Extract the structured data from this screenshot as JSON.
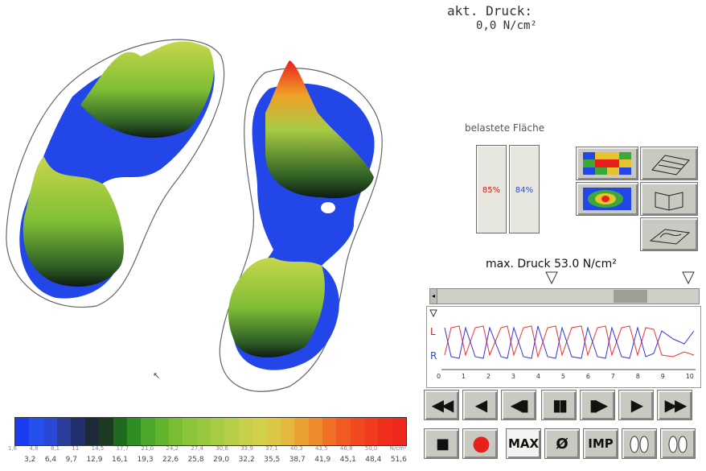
{
  "current_pressure": {
    "label": "akt. Druck:",
    "value": "0,0 N/cm²"
  },
  "loaded_area": {
    "title": "belastete Fläche",
    "left_percent": "85%",
    "right_percent": "84%"
  },
  "max_pressure": {
    "label": "max. Druck 53.0 N/cm²"
  },
  "timeline": {
    "left_label": "L",
    "right_label": "R",
    "tick_labels": [
      "0",
      "1",
      "2",
      "3",
      "4",
      "5",
      "6",
      "7",
      "8",
      "9",
      "10"
    ]
  },
  "controls": {
    "rewind_icon": "◀◀",
    "back_icon": "◀",
    "step_back_icon": "◀▮",
    "pause_icon": "▮▮",
    "step_forward_icon": "▮▶",
    "play_icon": "▶",
    "forward_icon": "▶▶",
    "stop_icon": "■",
    "record_icon": "●",
    "max_label": "MAX",
    "average_label": "Ø",
    "imp_label": "IMP"
  },
  "color_scale": {
    "colors": [
      "#1b3cf0",
      "#2650ee",
      "#2a48d6",
      "#2b3c9a",
      "#22306e",
      "#1e2a3a",
      "#1d3a22",
      "#1f6a1e",
      "#2f8e22",
      "#4aa82a",
      "#63b42d",
      "#79bd33",
      "#8cc43a",
      "#99c73f",
      "#a8cb44",
      "#b6cd47",
      "#c6d04a",
      "#d2d04b",
      "#dcc744",
      "#e4b83c",
      "#e9a133",
      "#ee8b2d",
      "#f07026",
      "#f15a22",
      "#f24a20",
      "#f23c1e",
      "#f0301c",
      "#ee281c"
    ],
    "top_ticks": [
      "1,6",
      "4,8",
      "8,1",
      "11",
      "14,5",
      "17,7",
      "21,0",
      "24,2",
      "27,4",
      "30,6",
      "33,9",
      "37,1",
      "40,3",
      "43,5",
      "46,8",
      "50,0",
      "N/cm²"
    ],
    "bottom_ticks": [
      "3,2",
      "6,4",
      "9,7",
      "12,9",
      "16,1",
      "19,3",
      "22,6",
      "25,8",
      "29,0",
      "32,2",
      "35,5",
      "38,7",
      "41,9",
      "45,1",
      "48,4",
      "51,6"
    ]
  }
}
